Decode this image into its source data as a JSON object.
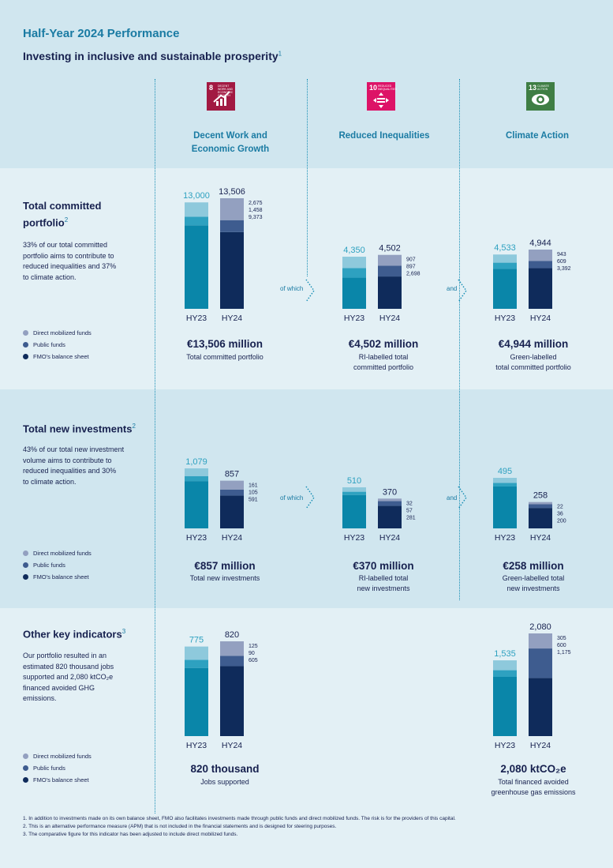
{
  "header": {
    "title": "Half-Year 2024 Performance",
    "subtitle": "Investing in inclusive and sustainable prosperity",
    "subtitle_note": "1"
  },
  "columns": [
    {
      "sdg_number": "8",
      "sdg_label": "DECENT WORK AND ECONOMIC GROWTH",
      "sdg_color": "#a21942",
      "heading_line1": "Decent Work and",
      "heading_line2": "Economic Growth"
    },
    {
      "sdg_number": "10",
      "sdg_label": "REDUCED INEQUALITIES",
      "sdg_color": "#dd1367",
      "heading_line1": "Reduced Inequalities",
      "heading_line2": ""
    },
    {
      "sdg_number": "13",
      "sdg_label": "CLIMATE ACTION",
      "sdg_color": "#3f7e44",
      "heading_line1": "Climate Action",
      "heading_line2": ""
    }
  ],
  "legend": {
    "direct": "Direct mobilized funds",
    "public": "Public funds",
    "fmo": "FMO's balance sheet"
  },
  "colors": {
    "direct": "#93a0c0",
    "public": "#3e5c8f",
    "fmo": "#0f2b5b",
    "hy23_top": "#8ec9dc",
    "hy23_mid": "#2ea1c0",
    "hy23_base": "#0a86a9",
    "accent": "#1a7ba3"
  },
  "sections": [
    {
      "title_line1": "Total committed",
      "title_line2": "portfolio",
      "note": "2",
      "desc": [
        "33% of our total committed",
        "portfolio aims to contribute to",
        "reduced inequalities and 37%",
        "to climate action."
      ],
      "connector_left": "of which",
      "connector_right": "and",
      "results": [
        {
          "big": "€13,506 million",
          "cap1": "Total committed portfolio",
          "cap2": ""
        },
        {
          "big": "€4,502 million",
          "cap1": "RI-labelled total",
          "cap2": "committed portfolio"
        },
        {
          "big": "€4,944 million",
          "cap1": "Green-labelled",
          "cap2": "total committed portfolio"
        }
      ]
    },
    {
      "title_line1": "Total new investments",
      "title_line2": "",
      "note": "2",
      "desc": [
        "43% of our total new investment",
        "volume aims to contribute to",
        "reduced inequalities and 30%",
        "to climate action."
      ],
      "connector_left": "of which",
      "connector_right": "and",
      "results": [
        {
          "big": "€857 million",
          "cap1": "Total new investments",
          "cap2": ""
        },
        {
          "big": "€370 million",
          "cap1": "RI-labelled total",
          "cap2": "new investments"
        },
        {
          "big": "€258 million",
          "cap1": "Green-labelled total",
          "cap2": "new investments"
        }
      ]
    },
    {
      "title_line1": "Other key indicators",
      "title_line2": "",
      "note": "3",
      "desc": [
        "Our portfolio resulted in an",
        "estimated 820 thousand jobs",
        "supported and 2,080 ktCO₂e",
        "financed avoided GHG",
        "emissions."
      ],
      "connector_left": "",
      "connector_right": "",
      "results": [
        {
          "big": "820 thousand",
          "cap1": "Jobs supported",
          "cap2": ""
        },
        {
          "big": "",
          "cap1": "",
          "cap2": ""
        },
        {
          "big": "2,080 ktCO₂e",
          "cap1": "Total financed avoided",
          "cap2": "greenhouse gas emissions"
        }
      ]
    }
  ],
  "footnotes": [
    "1.  In addition to investments made on its own balance sheet, FMO also facilitates investments made through public funds and direct mobilized funds. The risk is for the providers of this capital.",
    "2.  This is an alternative performance measure (APM) that is not included in the financial statements and is designed for steering purposes.",
    "3.  The comparative figure for this indicator has been adjusted to include direct mobilized funds."
  ],
  "chart_data": [
    {
      "type": "bar",
      "stacked": true,
      "title": "Total committed portfolio",
      "categories": [
        "HY23",
        "HY24"
      ],
      "totals": [
        13000,
        13506
      ],
      "totals_labels": [
        "13,000",
        "13,506"
      ],
      "series": [
        {
          "name": "FMO's balance sheet",
          "values": [
            10200,
            9373
          ]
        },
        {
          "name": "Public funds",
          "values": [
            1050,
            1458
          ]
        },
        {
          "name": "Direct mobilized funds",
          "values": [
            1750,
            2675
          ]
        }
      ],
      "series_labels": [
        "9,373",
        "1,458",
        "2,675"
      ]
    },
    {
      "type": "bar",
      "stacked": true,
      "title": "RI-labelled total committed portfolio",
      "categories": [
        "HY23",
        "HY24"
      ],
      "totals": [
        4350,
        4502
      ],
      "totals_labels": [
        "4,350",
        "4,502"
      ],
      "series": [
        {
          "name": "FMO's balance sheet",
          "values": [
            2600,
            2698
          ]
        },
        {
          "name": "Public funds",
          "values": [
            800,
            897
          ]
        },
        {
          "name": "Direct mobilized funds",
          "values": [
            950,
            907
          ]
        }
      ],
      "series_labels": [
        "2,698",
        "897",
        "907"
      ]
    },
    {
      "type": "bar",
      "stacked": true,
      "title": "Green-labelled total committed portfolio",
      "categories": [
        "HY23",
        "HY24"
      ],
      "totals": [
        4533,
        4944
      ],
      "totals_labels": [
        "4,533",
        "4,944"
      ],
      "series": [
        {
          "name": "FMO's balance sheet",
          "values": [
            3350,
            3392
          ]
        },
        {
          "name": "Public funds",
          "values": [
            500,
            609
          ]
        },
        {
          "name": "Direct mobilized funds",
          "values": [
            683,
            943
          ]
        }
      ],
      "series_labels": [
        "3,392",
        "609",
        "943"
      ]
    },
    {
      "type": "bar",
      "stacked": true,
      "title": "Total new investments",
      "categories": [
        "HY23",
        "HY24"
      ],
      "totals": [
        1079,
        857
      ],
      "totals_labels": [
        "1,079",
        "857"
      ],
      "series": [
        {
          "name": "FMO's balance sheet",
          "values": [
            850,
            591
          ]
        },
        {
          "name": "Public funds",
          "values": [
            90,
            105
          ]
        },
        {
          "name": "Direct mobilized funds",
          "values": [
            139,
            161
          ]
        }
      ],
      "series_labels": [
        "591",
        "105",
        "161"
      ]
    },
    {
      "type": "bar",
      "stacked": true,
      "title": "RI-labelled total new investments",
      "categories": [
        "HY23",
        "HY24"
      ],
      "totals": [
        510,
        370
      ],
      "totals_labels": [
        "510",
        "370"
      ],
      "series": [
        {
          "name": "FMO's balance sheet",
          "values": [
            415,
            281
          ]
        },
        {
          "name": "Public funds",
          "values": [
            40,
            57
          ]
        },
        {
          "name": "Direct mobilized funds",
          "values": [
            55,
            32
          ]
        }
      ],
      "series_labels": [
        "281",
        "57",
        "32"
      ]
    },
    {
      "type": "bar",
      "stacked": true,
      "title": "Green-labelled total new investments",
      "categories": [
        "HY23",
        "HY24"
      ],
      "totals": [
        495,
        258
      ],
      "totals_labels": [
        "495",
        "258"
      ],
      "series": [
        {
          "name": "FMO's balance sheet",
          "values": [
            410,
            200
          ]
        },
        {
          "name": "Public funds",
          "values": [
            35,
            36
          ]
        },
        {
          "name": "Direct mobilized funds",
          "values": [
            50,
            22
          ]
        }
      ],
      "series_labels": [
        "200",
        "36",
        "22"
      ]
    },
    {
      "type": "bar",
      "stacked": true,
      "title": "Jobs supported (thousands)",
      "categories": [
        "HY23",
        "HY24"
      ],
      "totals": [
        775,
        820
      ],
      "totals_labels": [
        "775",
        "820"
      ],
      "series": [
        {
          "name": "FMO's balance sheet",
          "values": [
            590,
            605
          ]
        },
        {
          "name": "Public funds",
          "values": [
            70,
            90
          ]
        },
        {
          "name": "Direct mobilized funds",
          "values": [
            115,
            125
          ]
        }
      ],
      "series_labels": [
        "605",
        "90",
        "125"
      ]
    },
    {
      "type": "bar",
      "stacked": true,
      "title": "Financed avoided GHG emissions (ktCO2e)",
      "categories": [
        "HY23",
        "HY24"
      ],
      "totals": [
        1535,
        2080
      ],
      "totals_labels": [
        "1,535",
        "2,080"
      ],
      "series": [
        {
          "name": "FMO's balance sheet",
          "values": [
            1200,
            1175
          ]
        },
        {
          "name": "Public funds",
          "values": [
            135,
            600
          ]
        },
        {
          "name": "Direct mobilized funds",
          "values": [
            200,
            305
          ]
        }
      ],
      "series_labels": [
        "1,175",
        "600",
        "305"
      ]
    }
  ]
}
